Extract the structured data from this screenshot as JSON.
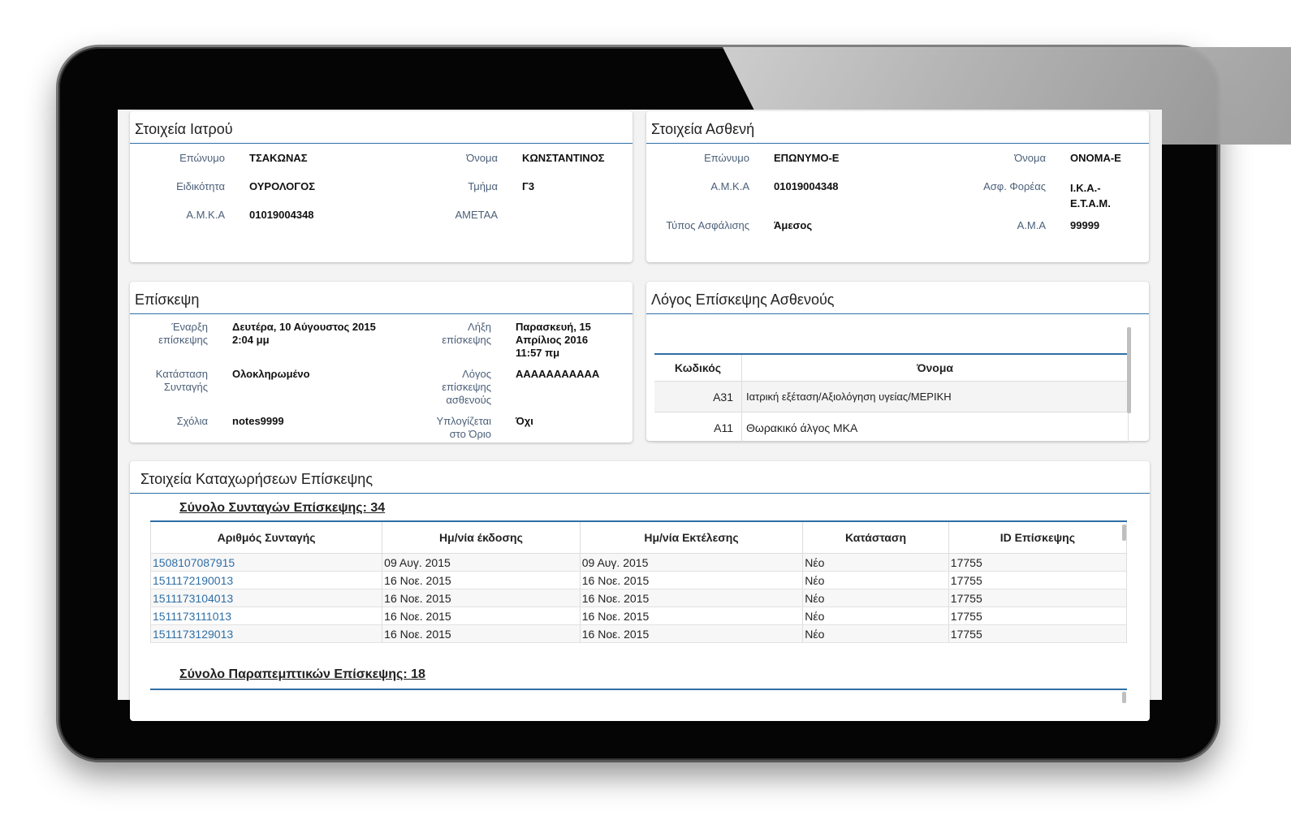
{
  "doctor": {
    "title": "Στοιχεία Ιατρού",
    "surname_label": "Επώνυμο",
    "surname": "ΤΣΑΚΩΝΑΣ",
    "name_label": "Όνομα",
    "name": "ΚΩΝΣΤΑΝΤΙΝΟΣ",
    "specialty_label": "Ειδικότητα",
    "specialty": "ΟΥΡΟΛΟΓΟΣ",
    "department_label": "Τμήμα",
    "department": "Γ3",
    "amka_label": "Α.Μ.Κ.Α",
    "amka": "01019004348",
    "ametaa_label": "ΑΜΕΤΑΑ",
    "ametaa": ""
  },
  "patient": {
    "title": "Στοιχεία Ασθενή",
    "surname_label": "Επώνυμο",
    "surname": "ΕΠΩΝΥΜΟ-Ε",
    "name_label": "Όνομα",
    "name": "ΟΝΟΜΑ-Ε",
    "amka_label": "Α.Μ.Κ.Α",
    "amka": "01019004348",
    "insurer_label": "Ασφ. Φορέας",
    "insurer": "Ι.Κ.Α.-Ε.Τ.Α.Μ.",
    "insurance_type_label": "Τύπος Ασφάλισης",
    "insurance_type": "Άμεσος",
    "ama_label": "Α.Μ.Α",
    "ama": "99999"
  },
  "visit": {
    "title": "Επίσκεψη",
    "start_label": "Έναρξη επίσκεψης",
    "start": "Δευτέρα, 10 Αύγουστος 2015 2:04 μμ",
    "end_label": "Λήξη επίσκεψης",
    "end": "Παρασκευή, 15 Απρίλιος 2016 11:57 πμ",
    "status_label": "Κατάσταση Συνταγής",
    "status": "Ολοκληρωμένο",
    "reason_label": "Λόγος επίσκεψης ασθενούς",
    "reason": "ΑΑΑΑΑΑΑΑΑΑΑ",
    "comments_label": "Σχόλια",
    "comments": "notes9999",
    "limit_label": "Υπλογίζεται στο Όριο",
    "limit": "Όχι"
  },
  "visit_reason": {
    "title": "Λόγος Επίσκεψης Ασθενούς",
    "col_code": "Κωδικός",
    "col_name": "Όνομα",
    "rows": [
      {
        "code": "A31",
        "name": "Ιατρική εξέταση/Αξιολόγηση υγείας/ΜΕΡΙΚΗ"
      },
      {
        "code": "A11",
        "name": "Θωρακικό άλγος ΜΚΑ"
      }
    ]
  },
  "entries": {
    "title": "Στοιχεία Καταχωρήσεων Επίσκεψης",
    "prescriptions_heading": "Σύνολο Συνταγών Επίσκεψης: 34",
    "columns": [
      "Αριθμός Συνταγής",
      "Ημ/νία έκδοσης",
      "Ημ/νία Εκτέλεσης",
      "Κατάσταση",
      "ID Επίσκεψης"
    ],
    "rows": [
      [
        "1508107087915",
        "09 Αυγ. 2015",
        "09 Αυγ. 2015",
        "Νέο",
        "17755"
      ],
      [
        "1511172190013",
        "16 Νοε. 2015",
        "16 Νοε. 2015",
        "Νέο",
        "17755"
      ],
      [
        "1511173104013",
        "16 Νοε. 2015",
        "16 Νοε. 2015",
        "Νέο",
        "17755"
      ],
      [
        "1511173111013",
        "16 Νοε. 2015",
        "16 Νοε. 2015",
        "Νέο",
        "17755"
      ],
      [
        "1511173129013",
        "16 Νοε. 2015",
        "16 Νοε. 2015",
        "Νέο",
        "17755"
      ]
    ],
    "referrals_heading": "Σύνολο Παραπεμπτικών Επίσκεψης: 18"
  }
}
